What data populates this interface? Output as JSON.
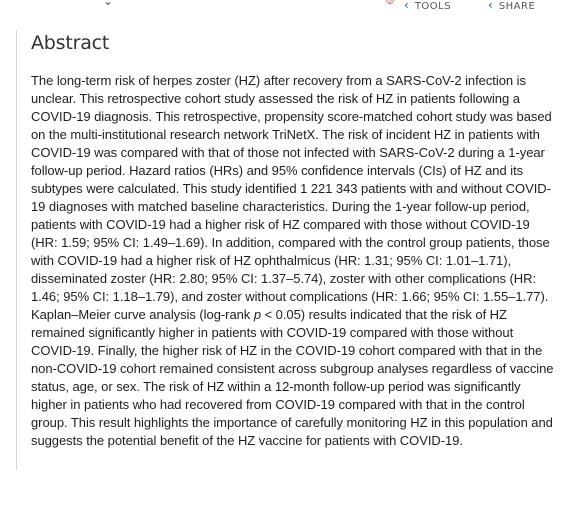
{
  "top_bar": {
    "pdf_icon": "pdf-icon",
    "tools_label": "TOOLS",
    "share_label": "SHARE"
  },
  "abstract": {
    "title": "Abstract",
    "text_before_p": "The long-term risk of herpes zoster (HZ) after recovery from a SARS-CoV-2 infection is unclear. This retrospective cohort study assessed the risk of HZ in patients following a COVID-19 diagnosis. This retrospective, propensity score-matched cohort study was based on the multi-institutional research network TriNetX. The risk of incident HZ in patients with COVID-19 was compared with that of those not infected with SARS-CoV-2 during a 1-year follow-up period. Hazard ratios (HRs) and 95% confidence intervals (CIs) of HZ and its subtypes were calculated. This study identified 1 221 343 patients with and without COVID-19 diagnoses with matched baseline characteristics. During the 1-year follow-up period, patients with COVID-19 had a higher risk of HZ compared with those without COVID-19 (HR: 1.59; 95% CI: 1.49–1.69). In addition, compared with the control group patients, those with COVID-19 had a higher risk of HZ ophthalmicus (HR: 1.31; 95% CI: 1.01–1.71), disseminated zoster (HR: 2.80; 95% CI: 1.37–5.74), zoster with other complications (HR: 1.46; 95% CI: 1.18–1.79), and zoster without complications (HR: 1.66; 95% CI: 1.55–1.77). Kaplan–Meier curve analysis (log-rank ",
    "p_symbol": "p",
    "text_after_p": " < 0.05) results indicated that the risk of HZ remained significantly higher in patients with COVID-19 compared with those without COVID-19. Finally, the higher risk of HZ in the COVID-19 cohort compared with that in the non-COVID-19 cohort remained consistent across subgroup analyses regardless of vaccine status, age, or sex. The risk of HZ within a 12-month follow-up period was significantly higher in patients who had recovered from COVID-19 compared with that in the control group. This result highlights the importance of carefully monitoring HZ in this population and suggests the potential benefit of the HZ vaccine for patients with COVID-19."
  }
}
